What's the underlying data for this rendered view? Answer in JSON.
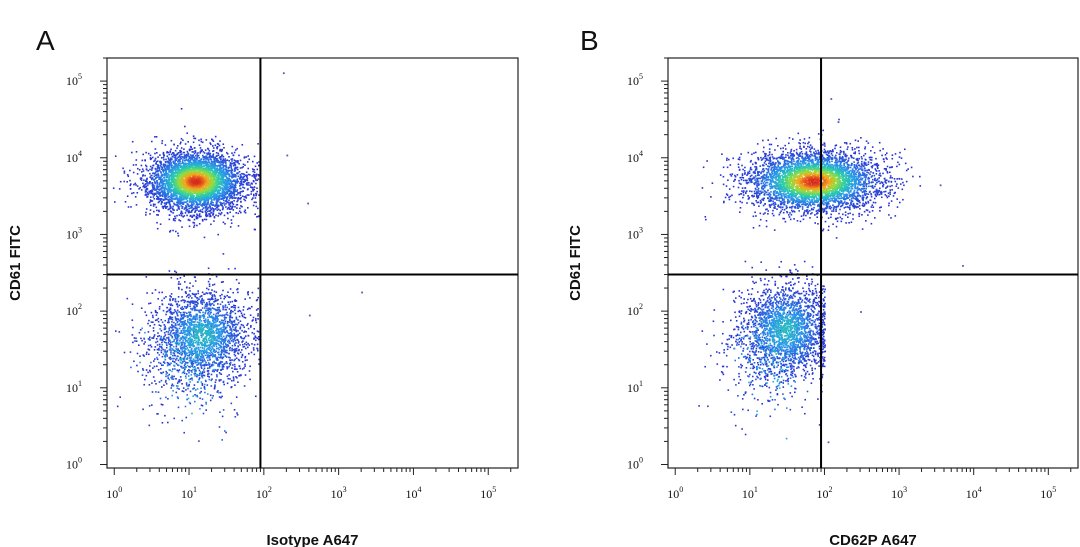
{
  "chart_data": [
    {
      "type": "scatter",
      "panel_label": "A",
      "xlabel": "Isotype A647",
      "ylabel": "CD61 FITC",
      "x_scale": "log",
      "y_scale": "log",
      "xlim": [
        0.8,
        250000
      ],
      "ylim": [
        0.9,
        200000
      ],
      "x_ticks": [
        {
          "base": "10",
          "exp": "0",
          "value": 1
        },
        {
          "base": "10",
          "exp": "1",
          "value": 10
        },
        {
          "base": "10",
          "exp": "2",
          "value": 100
        },
        {
          "base": "10",
          "exp": "3",
          "value": 1000
        },
        {
          "base": "10",
          "exp": "4",
          "value": 10000
        },
        {
          "base": "10",
          "exp": "5",
          "value": 100000
        }
      ],
      "y_ticks": [
        {
          "base": "10",
          "exp": "0",
          "value": 1
        },
        {
          "base": "10",
          "exp": "1",
          "value": 10
        },
        {
          "base": "10",
          "exp": "2",
          "value": 100
        },
        {
          "base": "10",
          "exp": "3",
          "value": 1000
        },
        {
          "base": "10",
          "exp": "4",
          "value": 10000
        },
        {
          "base": "10",
          "exp": "5",
          "value": 100000
        }
      ],
      "quadrant_gates": {
        "x": 90,
        "y": 300
      },
      "populations": [
        {
          "center_x": 12,
          "center_y": 5000,
          "spread_x_decades": 0.33,
          "spread_y_decades": 0.2,
          "max_x": 85,
          "density": "high"
        },
        {
          "center_x": 15,
          "center_y": 50,
          "spread_x_decades": 0.32,
          "spread_y_decades": 0.3,
          "max_x": 85,
          "density": "medium"
        }
      ],
      "outliers": [
        {
          "x": 180,
          "y": 130000
        },
        {
          "x": 380,
          "y": 2600
        },
        {
          "x": 2000,
          "y": 180
        },
        {
          "x": 200,
          "y": 11000
        },
        {
          "x": 400,
          "y": 90
        }
      ]
    },
    {
      "type": "scatter",
      "panel_label": "B",
      "xlabel": "CD62P A647",
      "ylabel": "CD61 FITC",
      "x_scale": "log",
      "y_scale": "log",
      "xlim": [
        0.8,
        250000
      ],
      "ylim": [
        0.9,
        200000
      ],
      "x_ticks": [
        {
          "base": "10",
          "exp": "0",
          "value": 1
        },
        {
          "base": "10",
          "exp": "1",
          "value": 10
        },
        {
          "base": "10",
          "exp": "2",
          "value": 100
        },
        {
          "base": "10",
          "exp": "3",
          "value": 1000
        },
        {
          "base": "10",
          "exp": "4",
          "value": 10000
        },
        {
          "base": "10",
          "exp": "5",
          "value": 100000
        }
      ],
      "y_ticks": [
        {
          "base": "10",
          "exp": "0",
          "value": 1
        },
        {
          "base": "10",
          "exp": "1",
          "value": 10
        },
        {
          "base": "10",
          "exp": "2",
          "value": 100
        },
        {
          "base": "10",
          "exp": "3",
          "value": 1000
        },
        {
          "base": "10",
          "exp": "4",
          "value": 10000
        },
        {
          "base": "10",
          "exp": "5",
          "value": 100000
        }
      ],
      "quadrant_gates": {
        "x": 90,
        "y": 300
      },
      "populations": [
        {
          "center_x": 70,
          "center_y": 5000,
          "spread_x_decades": 0.45,
          "spread_y_decades": 0.2,
          "max_x": 2000,
          "density": "high"
        },
        {
          "center_x": 30,
          "center_y": 60,
          "spread_x_decades": 0.3,
          "spread_y_decades": 0.3,
          "max_x": 100,
          "density": "medium"
        }
      ],
      "outliers": [
        {
          "x": 150,
          "y": 30000
        },
        {
          "x": 120,
          "y": 60000
        },
        {
          "x": 3500,
          "y": 4500
        },
        {
          "x": 7000,
          "y": 400
        },
        {
          "x": 300,
          "y": 100
        },
        {
          "x": 110,
          "y": 2
        }
      ]
    }
  ]
}
